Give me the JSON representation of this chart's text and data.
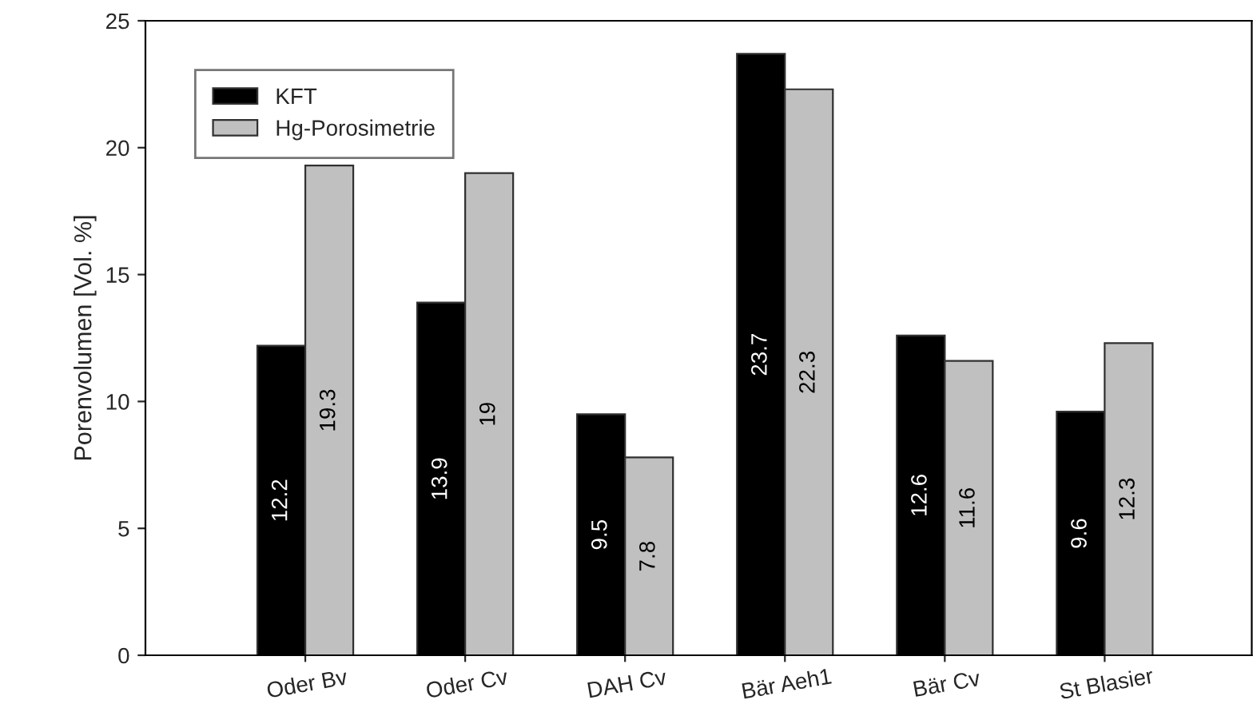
{
  "chart_data": {
    "type": "bar",
    "ylabel": "Porenvolumen [Vol. %]",
    "categories": [
      "Oder Bv",
      "Oder Cv",
      "DAH Cv",
      "Bär Aeh1",
      "Bär Cv",
      "St Blasier"
    ],
    "series": [
      {
        "name": "KFT",
        "color": "#000000",
        "values": [
          12.2,
          13.9,
          9.5,
          23.7,
          12.6,
          9.6
        ]
      },
      {
        "name": "Hg-Porosimetrie",
        "color": "#c0c0c0",
        "values": [
          19.3,
          19,
          7.8,
          22.3,
          11.6,
          12.3
        ]
      }
    ],
    "ylim": [
      0,
      25
    ],
    "yticks": [
      0,
      5,
      10,
      15,
      20,
      25
    ],
    "grid": false,
    "legend": "top left",
    "data_labels": true
  }
}
